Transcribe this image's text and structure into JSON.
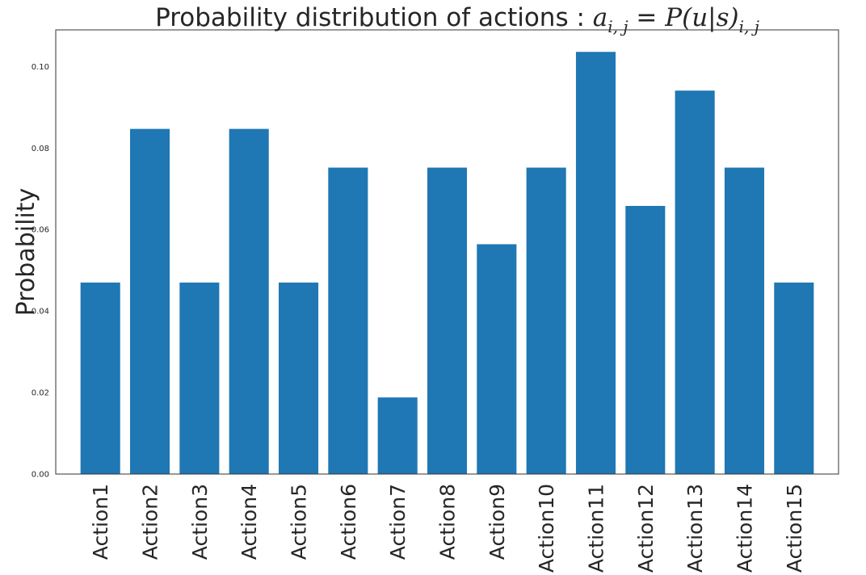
{
  "chart_data": {
    "type": "bar",
    "title": "Probability distribution of actions  :  ",
    "title_math": "a_{i,j} = P(u|s)_{i,j}",
    "title_math_parts": {
      "a": "a",
      "sub1": "i, j",
      "eq": " = ",
      "p": "P(u|s)",
      "sub2": "i, j"
    },
    "xlabel": "",
    "ylabel": "Probability",
    "ylim": [
      0,
      0.109
    ],
    "yticks": [
      "0.00",
      "0.02",
      "0.04",
      "0.06",
      "0.08",
      "0.10"
    ],
    "categories": [
      "Action1",
      "Action2",
      "Action3",
      "Action4",
      "Action5",
      "Action6",
      "Action7",
      "Action8",
      "Action9",
      "Action10",
      "Action11",
      "Action12",
      "Action13",
      "Action14",
      "Action15"
    ],
    "values": [
      0.047,
      0.0847,
      0.047,
      0.0847,
      0.047,
      0.0752,
      0.0188,
      0.0752,
      0.0564,
      0.0752,
      0.1036,
      0.0658,
      0.0941,
      0.0752,
      0.047
    ],
    "bar_color": "#1f77b4",
    "grid": false
  }
}
